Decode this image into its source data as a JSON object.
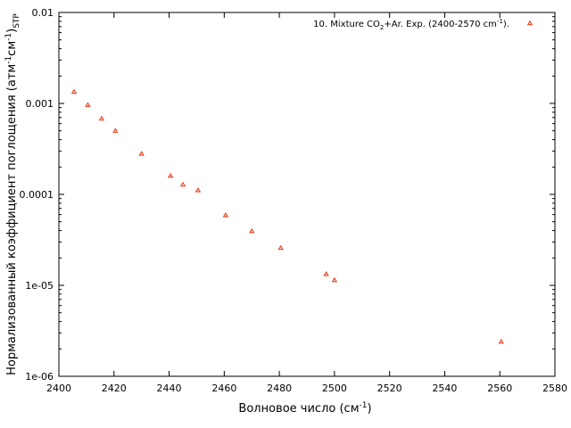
{
  "chart_data": {
    "type": "scatter",
    "xlabel": "Волновое число (см",
    "xlabel_sup": "-1",
    "xlabel_end": ")",
    "ylabel_main": "Нормализованный коэффициент поглощения (атм",
    "ylabel_sup1": "-1",
    "ylabel_mid": "см",
    "ylabel_sup2": "-1",
    "ylabel_end": ")",
    "ylabel_sub": "STP",
    "x_scale": "linear",
    "y_scale": "log",
    "xlim": [
      2400,
      2580
    ],
    "ylim": [
      1e-06,
      0.01
    ],
    "x_ticks": [
      2400,
      2420,
      2440,
      2460,
      2480,
      2500,
      2520,
      2540,
      2560,
      2580
    ],
    "x_tick_labels": [
      "2400",
      "2420",
      "2440",
      "2460",
      "2480",
      "2500",
      "2520",
      "2540",
      "2560",
      "2580"
    ],
    "y_ticks": [
      1e-06,
      1e-05,
      0.0001,
      0.001,
      0.01
    ],
    "y_tick_labels": [
      "1e-06",
      "1e-05",
      "0.0001",
      "0.001",
      "0.01"
    ],
    "grid": false,
    "legend_position": "top-right",
    "marker_color": "#e8492a",
    "series": [
      {
        "name": "10. Mixture CO2+Ar. Exp. (2400-2570 cm-1).",
        "legend_parts": {
          "a": "10. Mixture CO",
          "sub": "2",
          "b": "+Ar. Exp. (2400-2570 cm",
          "sup": "-1",
          "c": ")."
        },
        "points": [
          {
            "x": 2405.5,
            "y": 0.00134
          },
          {
            "x": 2410.5,
            "y": 0.00096
          },
          {
            "x": 2415.5,
            "y": 0.00068
          },
          {
            "x": 2420.5,
            "y": 0.0005
          },
          {
            "x": 2430,
            "y": 0.00028
          },
          {
            "x": 2440.5,
            "y": 0.00016
          },
          {
            "x": 2445,
            "y": 0.000128
          },
          {
            "x": 2450.5,
            "y": 0.000111
          },
          {
            "x": 2460.5,
            "y": 5.9e-05
          },
          {
            "x": 2470,
            "y": 3.95e-05
          },
          {
            "x": 2480.5,
            "y": 2.58e-05
          },
          {
            "x": 2497,
            "y": 1.33e-05
          },
          {
            "x": 2500,
            "y": 1.14e-05
          },
          {
            "x": 2560.5,
            "y": 2.4e-06
          }
        ]
      }
    ]
  }
}
